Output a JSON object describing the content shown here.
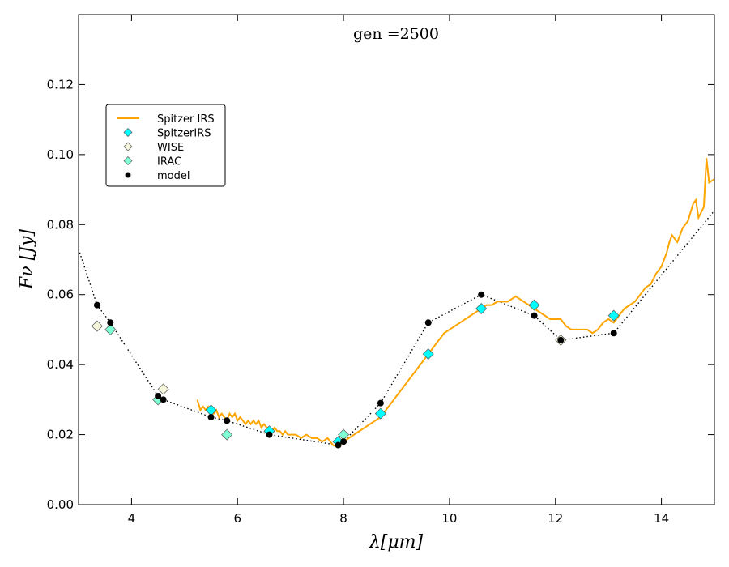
{
  "chart_data": {
    "type": "line",
    "title": "gen =2500",
    "xlabel": "λ[μm]",
    "ylabel": "Fν [Jy]",
    "xlim": [
      3,
      15
    ],
    "ylim": [
      0,
      0.14
    ],
    "x_ticks": [
      4,
      6,
      8,
      10,
      12,
      14
    ],
    "x_tick_labels": [
      "4",
      "6",
      "8",
      "10",
      "12",
      "14"
    ],
    "y_ticks": [
      0,
      0.02,
      0.04,
      0.06,
      0.08,
      0.1,
      0.12
    ],
    "y_tick_labels": [
      "0.00",
      "0.02",
      "0.04",
      "0.06",
      "0.08",
      "0.10",
      "0.12"
    ],
    "legend_position": "upper-left",
    "series": [
      {
        "name": "Spitzer IRS",
        "kind": "line",
        "color": "#ffa500",
        "x": [
          5.24,
          5.3,
          5.35,
          5.4,
          5.45,
          5.5,
          5.55,
          5.6,
          5.65,
          5.7,
          5.75,
          5.8,
          5.85,
          5.9,
          5.95,
          6.0,
          6.05,
          6.1,
          6.15,
          6.2,
          6.25,
          6.3,
          6.35,
          6.4,
          6.45,
          6.5,
          6.55,
          6.6,
          6.65,
          6.7,
          6.75,
          6.8,
          6.85,
          6.9,
          6.95,
          7.0,
          7.1,
          7.2,
          7.3,
          7.4,
          7.5,
          7.6,
          7.7,
          7.8,
          7.9,
          8.0,
          8.1,
          8.2,
          8.3,
          8.4,
          8.5,
          8.6,
          8.7,
          8.8,
          8.9,
          9.0,
          9.1,
          9.2,
          9.3,
          9.4,
          9.5,
          9.6,
          9.7,
          9.8,
          9.9,
          10.0,
          10.1,
          10.2,
          10.3,
          10.4,
          10.5,
          10.6,
          10.7,
          10.8,
          10.9,
          11.0,
          11.1,
          11.2,
          11.25,
          11.3,
          11.4,
          11.5,
          11.6,
          11.7,
          11.8,
          11.9,
          12.0,
          12.1,
          12.2,
          12.3,
          12.4,
          12.5,
          12.6,
          12.7,
          12.8,
          12.9,
          13.0,
          13.1,
          13.2,
          13.3,
          13.4,
          13.5,
          13.6,
          13.7,
          13.8,
          13.9,
          14.0,
          14.1,
          14.15,
          14.2,
          14.3,
          14.4,
          14.5,
          14.6,
          14.65,
          14.7,
          14.8,
          14.85,
          14.9,
          15.0
        ],
        "y": [
          0.03,
          0.027,
          0.028,
          0.027,
          0.028,
          0.027,
          0.026,
          0.027,
          0.025,
          0.026,
          0.025,
          0.024,
          0.026,
          0.025,
          0.026,
          0.024,
          0.025,
          0.024,
          0.023,
          0.024,
          0.023,
          0.024,
          0.023,
          0.024,
          0.022,
          0.023,
          0.022,
          0.022,
          0.021,
          0.022,
          0.021,
          0.021,
          0.02,
          0.021,
          0.02,
          0.02,
          0.02,
          0.019,
          0.02,
          0.019,
          0.019,
          0.018,
          0.019,
          0.017,
          0.0165,
          0.018,
          0.019,
          0.02,
          0.021,
          0.022,
          0.023,
          0.024,
          0.025,
          0.027,
          0.029,
          0.031,
          0.033,
          0.035,
          0.037,
          0.039,
          0.041,
          0.043,
          0.045,
          0.047,
          0.049,
          0.05,
          0.051,
          0.052,
          0.053,
          0.054,
          0.055,
          0.056,
          0.057,
          0.057,
          0.058,
          0.058,
          0.058,
          0.059,
          0.0595,
          0.059,
          0.058,
          0.057,
          0.056,
          0.055,
          0.054,
          0.053,
          0.053,
          0.053,
          0.051,
          0.05,
          0.05,
          0.05,
          0.05,
          0.049,
          0.05,
          0.052,
          0.053,
          0.052,
          0.054,
          0.056,
          0.057,
          0.058,
          0.06,
          0.062,
          0.063,
          0.066,
          0.068,
          0.072,
          0.075,
          0.077,
          0.075,
          0.079,
          0.081,
          0.086,
          0.087,
          0.082,
          0.085,
          0.099,
          0.092,
          0.093
        ]
      },
      {
        "name": "SpitzerIRS",
        "kind": "marker",
        "marker": "diamond",
        "color": "#00ffff",
        "x": [
          5.5,
          6.6,
          7.9,
          8.7,
          9.6,
          10.6,
          11.6,
          13.1
        ],
        "y": [
          0.027,
          0.021,
          0.018,
          0.026,
          0.043,
          0.056,
          0.057,
          0.054
        ]
      },
      {
        "name": "WISE",
        "kind": "marker",
        "marker": "diamond",
        "color": "#f5f5dc",
        "x": [
          3.35,
          4.6,
          12.1
        ],
        "y": [
          0.051,
          0.033,
          0.047
        ]
      },
      {
        "name": "IRAC",
        "kind": "marker",
        "marker": "diamond",
        "color": "#7fffd4",
        "x": [
          3.6,
          4.5,
          5.8,
          8.0
        ],
        "y": [
          0.05,
          0.03,
          0.02,
          0.02
        ]
      },
      {
        "name": "model",
        "kind": "marker+dotted-line",
        "marker": "circle",
        "color": "#000000",
        "x": [
          3.0,
          3.35,
          3.6,
          4.5,
          4.6,
          5.5,
          5.8,
          6.6,
          7.9,
          8.0,
          8.7,
          9.6,
          10.6,
          11.6,
          12.1,
          13.1,
          15.0
        ],
        "y": [
          0.073,
          0.057,
          0.052,
          0.031,
          0.03,
          0.025,
          0.024,
          0.02,
          0.017,
          0.018,
          0.029,
          0.052,
          0.06,
          0.054,
          0.047,
          0.049,
          0.084
        ],
        "marker_x": [
          3.35,
          3.6,
          4.5,
          4.6,
          5.5,
          5.8,
          6.6,
          7.9,
          8.0,
          8.7,
          9.6,
          10.6,
          11.6,
          12.1,
          13.1
        ],
        "marker_y": [
          0.057,
          0.052,
          0.031,
          0.03,
          0.025,
          0.024,
          0.02,
          0.017,
          0.018,
          0.029,
          0.052,
          0.06,
          0.054,
          0.047,
          0.049
        ]
      }
    ]
  }
}
